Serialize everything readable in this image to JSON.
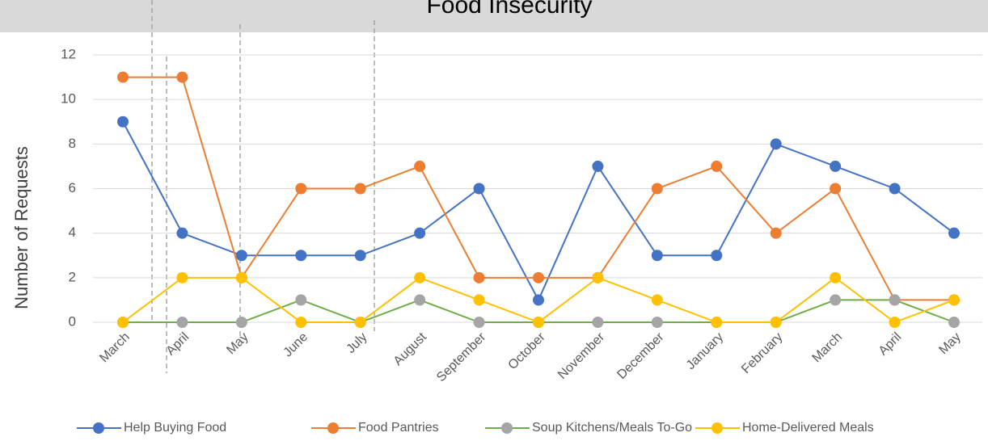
{
  "chart_data": {
    "type": "line",
    "title": "Food Insecurity",
    "ylabel": "Number of Requests",
    "categories": [
      "March",
      "April",
      "May",
      "June",
      "July",
      "August",
      "September",
      "October",
      "November",
      "December",
      "January",
      "February",
      "March",
      "April",
      "May"
    ],
    "series": [
      {
        "name": "Help Buying Food",
        "color": "#4472c4",
        "values": [
          9,
          4,
          3,
          3,
          3,
          4,
          6,
          1,
          7,
          3,
          3,
          8,
          7,
          6,
          4
        ]
      },
      {
        "name": "Food Pantries",
        "color": "#ed7d31",
        "values": [
          11,
          11,
          2,
          6,
          6,
          7,
          2,
          2,
          2,
          6,
          7,
          4,
          6,
          1,
          1
        ]
      },
      {
        "name": "Soup Kitchens/Meals To-Go",
        "color": "#a5a5a5",
        "line_color": "#70ad47",
        "values": [
          0,
          0,
          0,
          1,
          0,
          1,
          0,
          0,
          0,
          0,
          0,
          0,
          1,
          1,
          0
        ]
      },
      {
        "name": "Home-Delivered Meals",
        "color": "#ffc000",
        "values": [
          0,
          2,
          2,
          0,
          0,
          2,
          1,
          0,
          2,
          1,
          0,
          0,
          2,
          0,
          1
        ]
      }
    ],
    "ylim": [
      0,
      12
    ],
    "yticks": [
      0,
      2,
      4,
      6,
      8,
      10,
      12
    ],
    "grid": true,
    "legend": "bottom"
  }
}
